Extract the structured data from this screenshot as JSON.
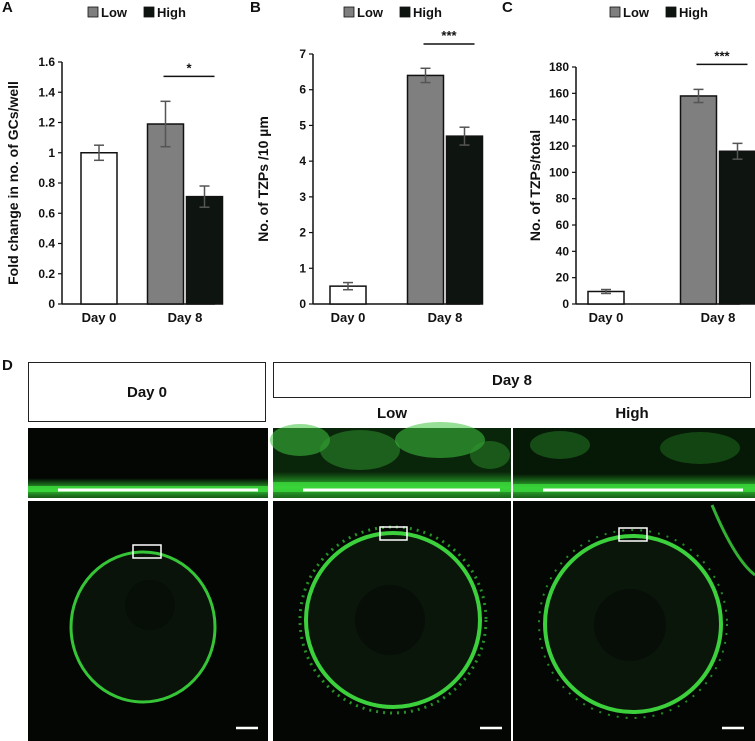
{
  "panels": {
    "a": "A",
    "b": "B",
    "c": "C",
    "d": "D"
  },
  "legend": {
    "low": "Low",
    "high": "High"
  },
  "colors": {
    "day0": "#ffffff",
    "low": "#7f7f7f",
    "high": "#0e1410",
    "stroke": "#111111",
    "fluor": "#39d13a"
  },
  "chart_data": [
    {
      "type": "bar",
      "panel": "A",
      "categories": [
        "Day 0",
        "Day 8"
      ],
      "ylabel": "Fold change in no. of GCs/well",
      "ylim": [
        0,
        1.6
      ],
      "yticks": [
        0,
        0.2,
        0.4,
        0.6,
        0.8,
        1,
        1.2,
        1.4,
        1.6
      ],
      "yticklabels": [
        "0",
        "0.2",
        "0.4",
        "0.6",
        "0.8",
        "1",
        "1.2",
        "1.4",
        "1.6"
      ],
      "series": [
        {
          "values": [
            1.0,
            null
          ],
          "errors": [
            0.05,
            null
          ],
          "color": "#ffffff"
        },
        {
          "name": "Low",
          "values": [
            null,
            1.19
          ],
          "errors": [
            null,
            0.15
          ],
          "color": "#7f7f7f"
        },
        {
          "name": "High",
          "values": [
            null,
            0.71
          ],
          "errors": [
            null,
            0.07
          ],
          "color": "#0e1410"
        }
      ],
      "significance": "*",
      "legend_position": "top"
    },
    {
      "type": "bar",
      "panel": "B",
      "categories": [
        "Day 0",
        "Day 8"
      ],
      "ylabel": "No. of TZPs /10 µm",
      "ylim": [
        0,
        7
      ],
      "yticks": [
        0,
        1,
        2,
        3,
        4,
        5,
        6,
        7
      ],
      "yticklabels": [
        "0",
        "1",
        "2",
        "3",
        "4",
        "5",
        "6",
        "7"
      ],
      "series": [
        {
          "values": [
            0.5,
            null
          ],
          "errors": [
            0.1,
            null
          ],
          "color": "#ffffff"
        },
        {
          "name": "Low",
          "values": [
            null,
            6.4
          ],
          "errors": [
            null,
            0.2
          ],
          "color": "#7f7f7f"
        },
        {
          "name": "High",
          "values": [
            null,
            4.7
          ],
          "errors": [
            null,
            0.25
          ],
          "color": "#0e1410"
        }
      ],
      "significance": "***",
      "legend_position": "top"
    },
    {
      "type": "bar",
      "panel": "C",
      "categories": [
        "Day 0",
        "Day 8"
      ],
      "ylabel": "No. of TZPs/total",
      "ylim": [
        0,
        180
      ],
      "yticks": [
        0,
        20,
        40,
        60,
        80,
        100,
        120,
        140,
        160,
        180
      ],
      "yticklabels": [
        "0",
        "20",
        "40",
        "60",
        "80",
        "100",
        "120",
        "140",
        "160",
        "180"
      ],
      "series": [
        {
          "values": [
            9.5,
            null
          ],
          "errors": [
            1.5,
            null
          ],
          "color": "#ffffff"
        },
        {
          "name": "Low",
          "values": [
            null,
            158
          ],
          "errors": [
            null,
            5
          ],
          "color": "#7f7f7f"
        },
        {
          "name": "High",
          "values": [
            null,
            116
          ],
          "errors": [
            null,
            6
          ],
          "color": "#0e1410"
        }
      ],
      "significance": "***",
      "legend_position": "top"
    }
  ],
  "images": {
    "day0_header": "Day 0",
    "day8_header": "Day 8",
    "low_label": "Low",
    "high_label": "High"
  }
}
